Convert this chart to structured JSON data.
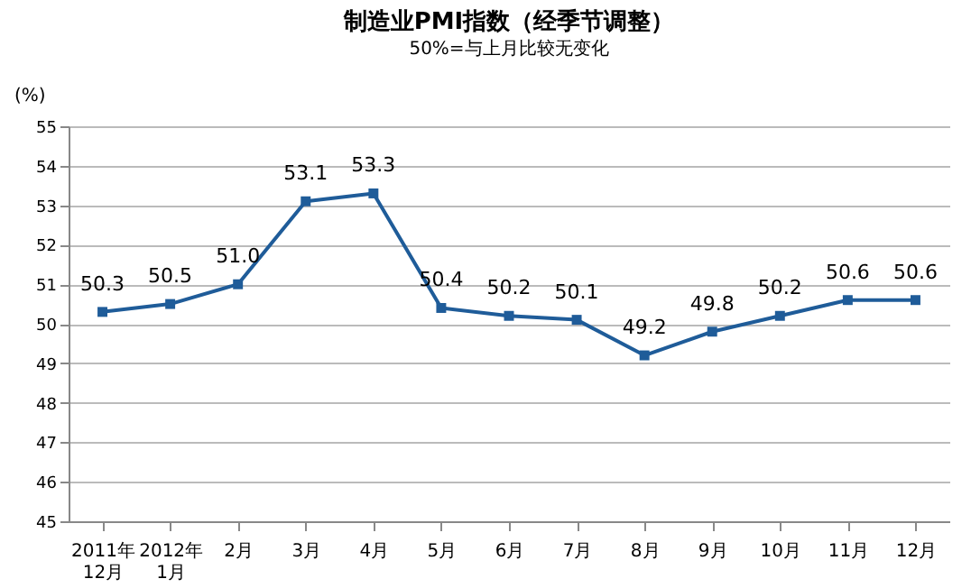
{
  "chart_data": {
    "type": "line",
    "title": "制造业PMI指数（经季节调整）",
    "ylabel": "(%)",
    "annotations": [
      "50%=与上月比较无变化"
    ],
    "categories": [
      "2011年12月",
      "2012年1月",
      "2月",
      "3月",
      "4月",
      "5月",
      "6月",
      "7月",
      "8月",
      "9月",
      "10月",
      "11月",
      "12月"
    ],
    "series": [
      {
        "color": "#1f5c99",
        "values": [
          50.3,
          50.5,
          51.0,
          53.1,
          53.3,
          50.4,
          50.2,
          50.1,
          49.2,
          49.8,
          50.2,
          50.6,
          50.6
        ]
      }
    ],
    "value_labels": [
      "50.3",
      "50.5",
      "51.0",
      "53.1",
      "53.3",
      "50.4",
      "50.2",
      "50.1",
      "49.2",
      "49.8",
      "50.2",
      "50.6",
      "50.6"
    ],
    "ylim": [
      45,
      55
    ],
    "yticks": [
      45,
      46,
      47,
      48,
      49,
      50,
      51,
      52,
      53,
      54,
      55
    ],
    "grid": "y",
    "marker": "square",
    "line_style": "solid"
  }
}
